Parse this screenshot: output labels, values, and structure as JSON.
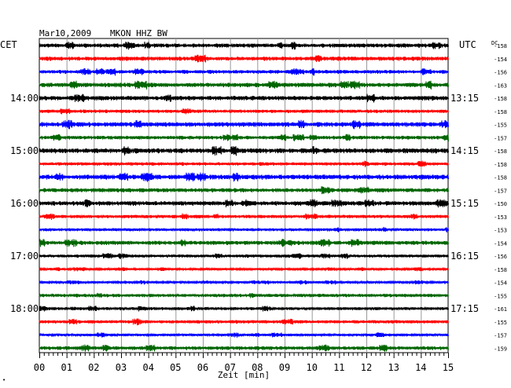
{
  "header": {
    "date": "Mar10,2009",
    "station": "MKON HHZ BW"
  },
  "labels": {
    "left_timezone": "CET",
    "right_timezone": "UTC",
    "dc_header": "DC",
    "xlabel": "Zeit [min]",
    "footnote": "•"
  },
  "chart_data": {
    "type": "line",
    "title": "Mar10,2009   MKON HHZ BW",
    "xlabel": "Zeit [min]",
    "ylabel": "",
    "x_range": [
      0,
      15
    ],
    "x_ticks": [
      "00",
      "01",
      "02",
      "03",
      "04",
      "05",
      "06",
      "07",
      "08",
      "09",
      "10",
      "11",
      "12",
      "13",
      "14",
      "15"
    ],
    "grid": true,
    "trace_minutes": 15,
    "left_hour_labels": [
      {
        "trace": 4,
        "label": "14:00"
      },
      {
        "trace": 8,
        "label": "15:00"
      },
      {
        "trace": 12,
        "label": "16:00"
      },
      {
        "trace": 16,
        "label": "17:00"
      },
      {
        "trace": 20,
        "label": "18:00"
      }
    ],
    "right_hour_labels": [
      {
        "trace": 4,
        "label": "13:15"
      },
      {
        "trace": 8,
        "label": "14:15"
      },
      {
        "trace": 12,
        "label": "15:15"
      },
      {
        "trace": 16,
        "label": "16:15"
      },
      {
        "trace": 20,
        "label": "17:15"
      }
    ],
    "series_colors": [
      "#000000",
      "#ff0000",
      "#0000ff",
      "#006600"
    ],
    "dc_offsets": [
      -158,
      -154,
      -156,
      -163,
      -158,
      -158,
      -155,
      -157,
      -158,
      -158,
      -158,
      -157,
      -150,
      -153,
      -153,
      -154,
      -156,
      -158,
      -154,
      -155,
      -161,
      -155,
      -157,
      -159
    ],
    "traces": [
      {
        "amplitude": 2.2
      },
      {
        "amplitude": 2.2
      },
      {
        "amplitude": 2.0
      },
      {
        "amplitude": 2.4
      },
      {
        "amplitude": 2.4
      },
      {
        "amplitude": 1.8
      },
      {
        "amplitude": 2.5
      },
      {
        "amplitude": 2.0
      },
      {
        "amplitude": 2.6
      },
      {
        "amplitude": 1.8
      },
      {
        "amplitude": 2.6
      },
      {
        "amplitude": 2.2
      },
      {
        "amplitude": 2.4
      },
      {
        "amplitude": 1.8
      },
      {
        "amplitude": 1.6
      },
      {
        "amplitude": 2.2
      },
      {
        "amplitude": 1.6
      },
      {
        "amplitude": 1.2
      },
      {
        "amplitude": 1.2
      },
      {
        "amplitude": 1.8
      },
      {
        "amplitude": 1.6
      },
      {
        "amplitude": 1.8
      },
      {
        "amplitude": 1.4
      },
      {
        "amplitude": 2.0
      }
    ]
  }
}
